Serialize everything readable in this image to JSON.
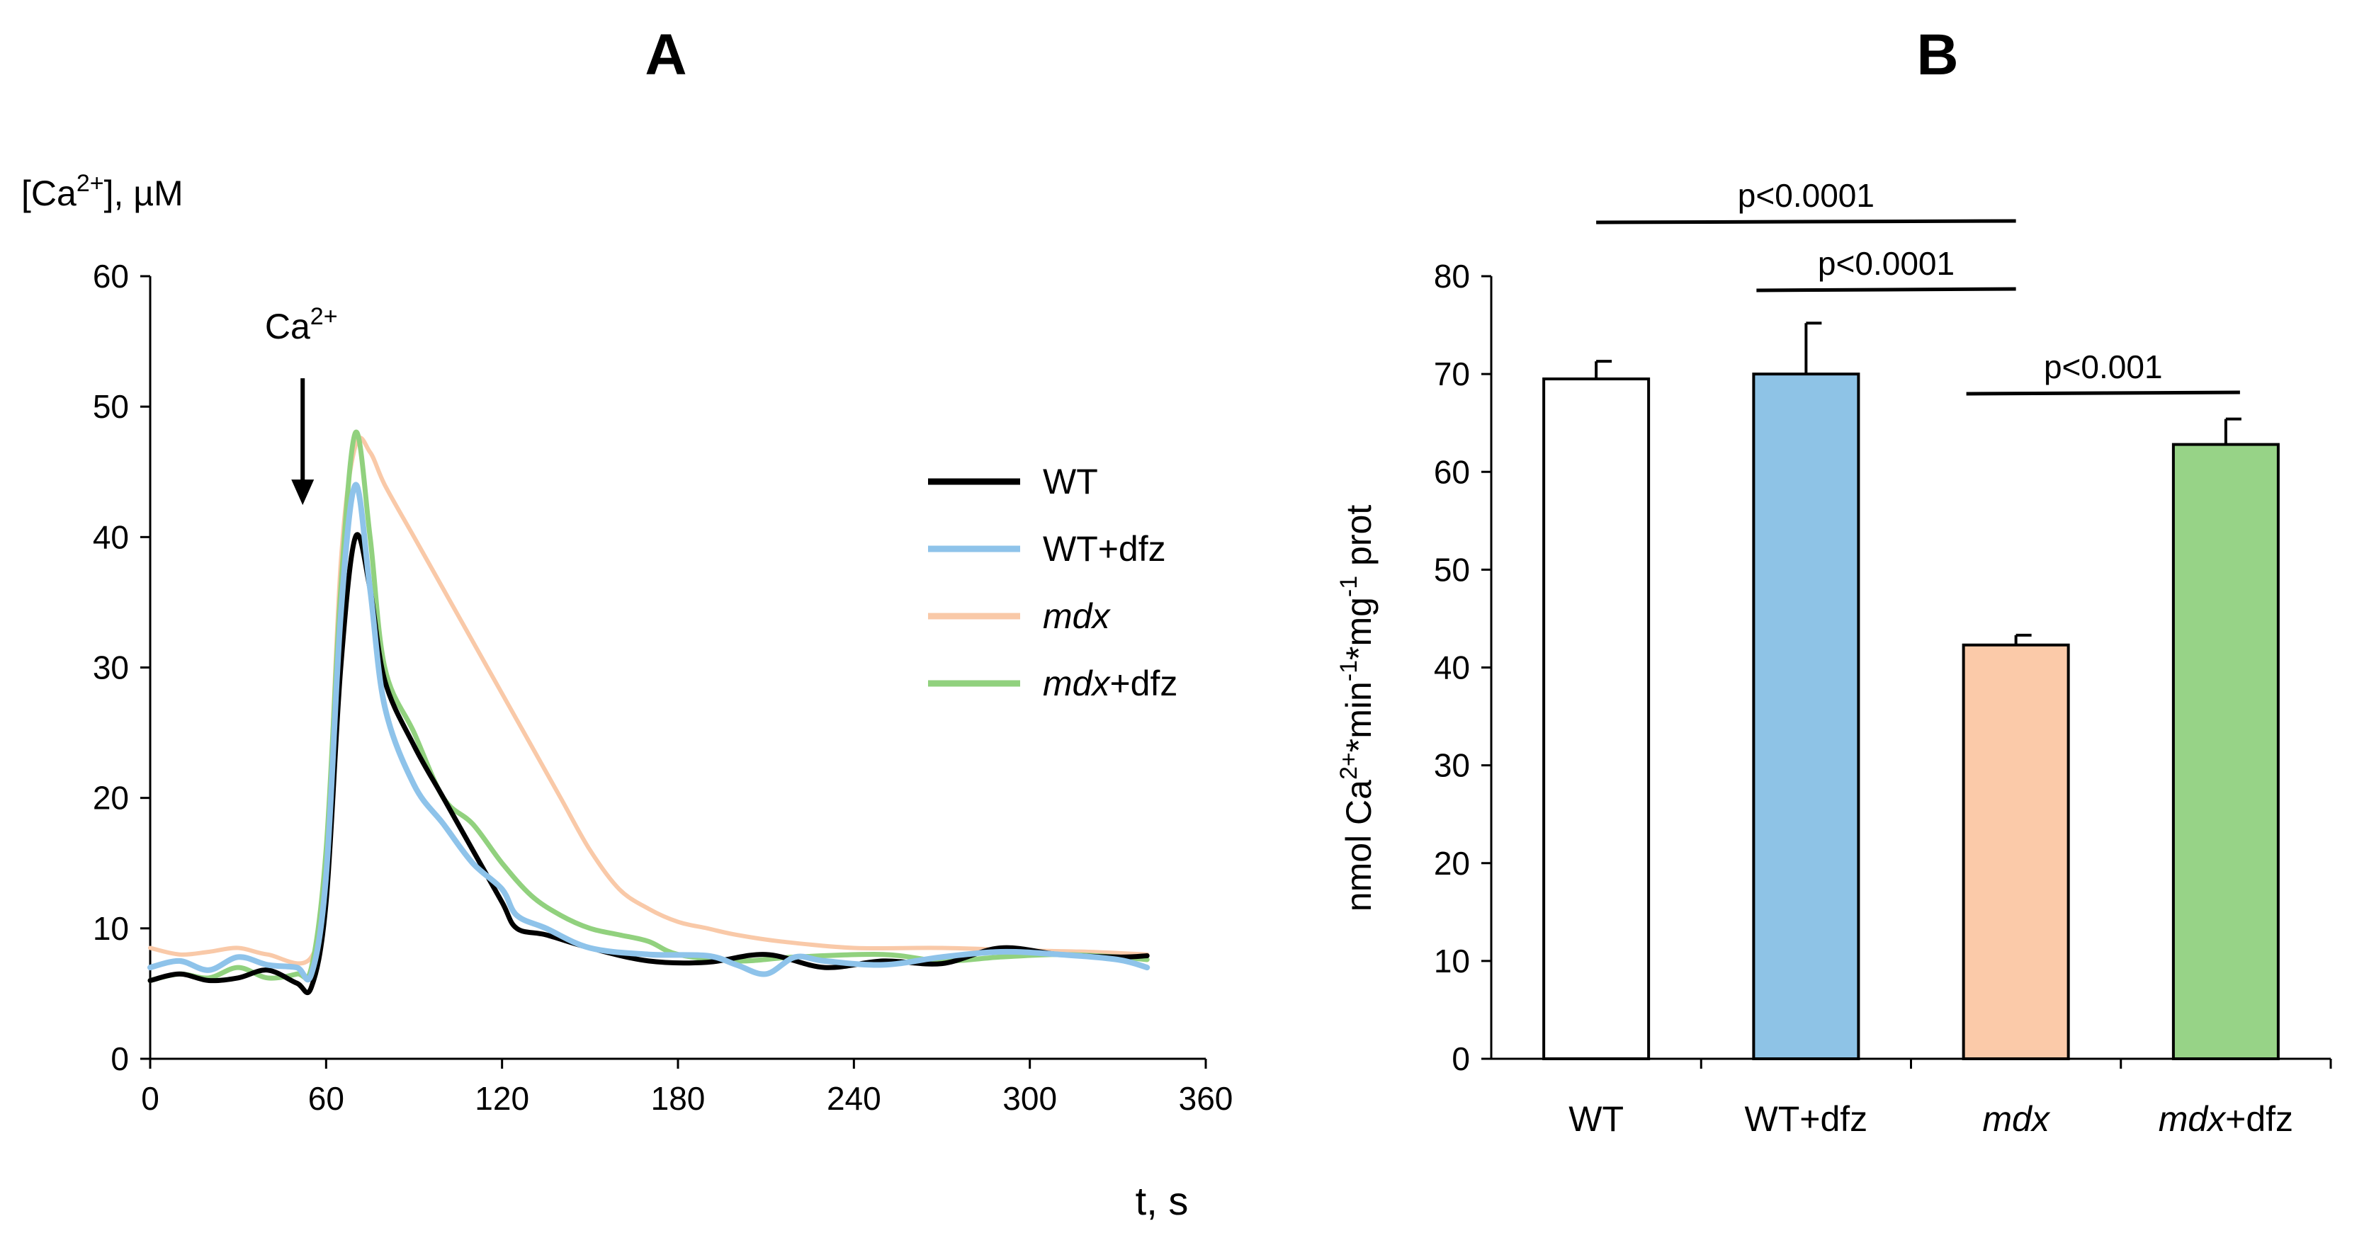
{
  "chart_data": [
    {
      "panel": "A",
      "type": "line",
      "ylabel": {
        "base": "[Ca",
        "sup": "2+",
        "rest": "], µM"
      },
      "xlabel": "t, s",
      "xlim": [
        0,
        360
      ],
      "ylim": [
        0,
        60
      ],
      "xticks": [
        "0",
        "60",
        "120",
        "180",
        "240",
        "300",
        "360"
      ],
      "yticks": [
        "0",
        "10",
        "20",
        "30",
        "40",
        "50",
        "60"
      ],
      "annotation": {
        "base": "Ca",
        "sup": "2+",
        "x": 52,
        "y_from": 50,
        "y_to": 43
      },
      "series": [
        {
          "name": "WT",
          "color": "#000000",
          "points": [
            [
              0,
              6
            ],
            [
              10,
              6.5
            ],
            [
              20,
              6
            ],
            [
              30,
              6.2
            ],
            [
              40,
              6.8
            ],
            [
              50,
              5.8
            ],
            [
              55,
              5.5
            ],
            [
              60,
              12
            ],
            [
              65,
              30
            ],
            [
              70,
              40
            ],
            [
              75,
              36
            ],
            [
              80,
              29
            ],
            [
              90,
              24
            ],
            [
              100,
              20
            ],
            [
              110,
              16
            ],
            [
              120,
              12
            ],
            [
              125,
              10
            ],
            [
              135,
              9.5
            ],
            [
              150,
              8.5
            ],
            [
              170,
              7.5
            ],
            [
              190,
              7.4
            ],
            [
              210,
              8
            ],
            [
              230,
              7
            ],
            [
              250,
              7.5
            ],
            [
              270,
              7.3
            ],
            [
              290,
              8.5
            ],
            [
              310,
              8
            ],
            [
              330,
              7.8
            ],
            [
              340,
              7.9
            ]
          ]
        },
        {
          "name": "WT+dfz",
          "color": "#8ec3ea",
          "points": [
            [
              0,
              7
            ],
            [
              10,
              7.5
            ],
            [
              20,
              6.8
            ],
            [
              30,
              7.8
            ],
            [
              40,
              7.2
            ],
            [
              50,
              7
            ],
            [
              55,
              6.5
            ],
            [
              60,
              14
            ],
            [
              65,
              34
            ],
            [
              70,
              44
            ],
            [
              75,
              36
            ],
            [
              80,
              27
            ],
            [
              90,
              21
            ],
            [
              100,
              18
            ],
            [
              110,
              15
            ],
            [
              120,
              13
            ],
            [
              125,
              11
            ],
            [
              135,
              10
            ],
            [
              150,
              8.5
            ],
            [
              170,
              8
            ],
            [
              190,
              7.9
            ],
            [
              200,
              7.2
            ],
            [
              210,
              6.5
            ],
            [
              220,
              7.8
            ],
            [
              230,
              7.5
            ],
            [
              250,
              7.2
            ],
            [
              270,
              7.8
            ],
            [
              290,
              8.2
            ],
            [
              310,
              8
            ],
            [
              330,
              7.6
            ],
            [
              340,
              7
            ]
          ]
        },
        {
          "name": "mdx",
          "color": "#f9c9a8",
          "points": [
            [
              0,
              8.5
            ],
            [
              10,
              8
            ],
            [
              20,
              8.2
            ],
            [
              30,
              8.5
            ],
            [
              40,
              8
            ],
            [
              55,
              7.8
            ],
            [
              60,
              15
            ],
            [
              65,
              38
            ],
            [
              70,
              47
            ],
            [
              75,
              46.5
            ],
            [
              80,
              44
            ],
            [
              90,
              40
            ],
            [
              100,
              36
            ],
            [
              110,
              32
            ],
            [
              120,
              28
            ],
            [
              130,
              24
            ],
            [
              140,
              20
            ],
            [
              150,
              16
            ],
            [
              160,
              13
            ],
            [
              170,
              11.5
            ],
            [
              180,
              10.5
            ],
            [
              190,
              10
            ],
            [
              200,
              9.5
            ],
            [
              215,
              9
            ],
            [
              240,
              8.5
            ],
            [
              270,
              8.5
            ],
            [
              300,
              8.3
            ],
            [
              320,
              8.2
            ],
            [
              340,
              8
            ]
          ]
        },
        {
          "name": "mdx+dfz",
          "color": "#91d17e",
          "points": [
            [
              0,
              6
            ],
            [
              10,
              6.5
            ],
            [
              20,
              6.2
            ],
            [
              30,
              7
            ],
            [
              40,
              6.2
            ],
            [
              50,
              6.5
            ],
            [
              55,
              7
            ],
            [
              60,
              16
            ],
            [
              65,
              36
            ],
            [
              70,
              48
            ],
            [
              75,
              40
            ],
            [
              80,
              30
            ],
            [
              90,
              25
            ],
            [
              100,
              20
            ],
            [
              110,
              18
            ],
            [
              120,
              15
            ],
            [
              130,
              12.5
            ],
            [
              140,
              11
            ],
            [
              150,
              10
            ],
            [
              160,
              9.5
            ],
            [
              170,
              9
            ],
            [
              180,
              8
            ],
            [
              200,
              7.5
            ],
            [
              220,
              7.8
            ],
            [
              250,
              8
            ],
            [
              270,
              7.5
            ],
            [
              290,
              7.8
            ],
            [
              310,
              8
            ],
            [
              330,
              7.8
            ],
            [
              340,
              7.6
            ]
          ]
        }
      ]
    },
    {
      "panel": "B",
      "type": "bar",
      "ylabel": {
        "p1": "nmol Ca",
        "s1": "2+",
        "p2": "*min",
        "s2": "-1",
        "p3": "*mg",
        "s3": "-1",
        "p4": " prot"
      },
      "ylim": [
        0,
        80
      ],
      "yticks": [
        "0",
        "10",
        "20",
        "30",
        "40",
        "50",
        "60",
        "70",
        "80"
      ],
      "categories": [
        {
          "label": "WT",
          "italic": "",
          "rest": "WT"
        },
        {
          "label": "WT+dfz",
          "italic": "",
          "rest": "WT+dfz"
        },
        {
          "label": "mdx",
          "italic": "mdx",
          "rest": ""
        },
        {
          "label": "mdx+dfz",
          "italic": "mdx",
          "rest": "+dfz"
        }
      ],
      "values": [
        69.5,
        70,
        42.3,
        62.8
      ],
      "errors": [
        1.8,
        5.2,
        1.0,
        2.6
      ],
      "colors": [
        "#ffffff",
        "#8ec3e6",
        "#fbcaa9",
        "#97d387"
      ],
      "significance": [
        {
          "text": "p<0.0001",
          "from": 0,
          "to": 2
        },
        {
          "text": "p<0.0001",
          "from": 1,
          "to": 2
        },
        {
          "text": "p<0.001",
          "from": 2,
          "to": 3
        }
      ]
    }
  ]
}
